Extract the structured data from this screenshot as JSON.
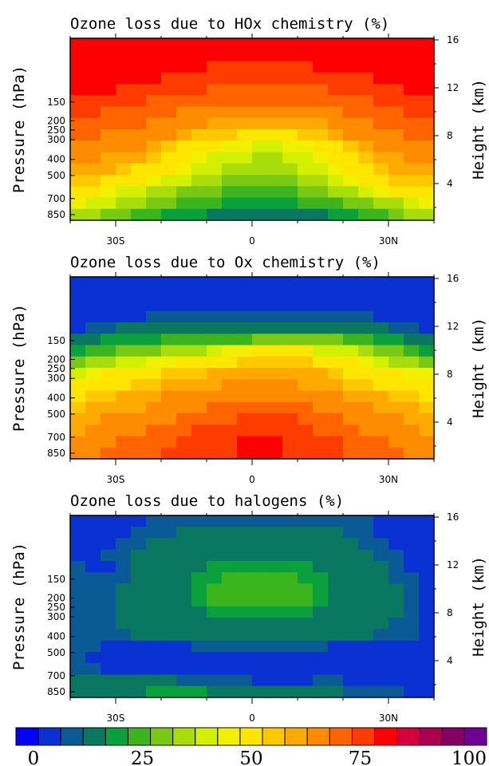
{
  "chart_data": [
    {
      "type": "heatmap",
      "title": "Ozone loss due to HOx chemistry (%)",
      "ylabel": "Pressure (hPa)",
      "ylabel_right": "Height (km)",
      "x_ticks": [
        "30S",
        "0",
        "30N"
      ],
      "y_ticks": [
        "150",
        "200",
        "250",
        "300",
        "400",
        "500",
        "700",
        "850"
      ],
      "y_right_ticks": [
        "16",
        "12",
        "8",
        "4"
      ],
      "x_range": [
        "40S",
        "40N"
      ],
      "height_range_km": [
        0,
        16
      ],
      "color_range": [
        0,
        100
      ],
      "rows_top_to_bottom": [
        [
          80,
          80,
          80,
          80,
          80,
          80,
          80,
          80,
          80,
          80,
          78,
          78,
          78,
          78,
          78,
          78,
          78,
          78,
          78,
          78,
          80,
          80,
          80,
          80
        ],
        [
          80,
          80,
          80,
          80,
          78,
          78,
          78,
          78,
          78,
          78,
          78,
          78,
          78,
          78,
          78,
          78,
          78,
          78,
          78,
          78,
          80,
          80,
          80,
          80
        ],
        [
          80,
          80,
          80,
          80,
          78,
          78,
          78,
          78,
          78,
          75,
          75,
          75,
          75,
          75,
          75,
          75,
          78,
          78,
          78,
          78,
          78,
          78,
          80,
          80
        ],
        [
          80,
          80,
          78,
          78,
          78,
          78,
          75,
          75,
          75,
          72,
          72,
          72,
          72,
          72,
          72,
          72,
          75,
          75,
          75,
          75,
          78,
          78,
          80,
          80
        ],
        [
          78,
          78,
          78,
          75,
          75,
          75,
          72,
          72,
          72,
          70,
          70,
          70,
          70,
          70,
          70,
          70,
          70,
          72,
          72,
          72,
          75,
          75,
          78,
          78
        ],
        [
          75,
          75,
          72,
          72,
          72,
          70,
          70,
          68,
          68,
          68,
          68,
          68,
          68,
          68,
          68,
          68,
          68,
          68,
          70,
          70,
          72,
          72,
          75,
          75
        ],
        [
          72,
          72,
          70,
          70,
          70,
          68,
          68,
          65,
          65,
          65,
          65,
          62,
          62,
          62,
          62,
          65,
          65,
          65,
          68,
          68,
          70,
          70,
          72,
          72
        ],
        [
          70,
          70,
          68,
          68,
          68,
          65,
          65,
          62,
          62,
          60,
          60,
          58,
          58,
          58,
          58,
          60,
          60,
          62,
          65,
          65,
          68,
          68,
          70,
          70
        ],
        [
          68,
          68,
          65,
          65,
          65,
          62,
          62,
          58,
          55,
          55,
          55,
          52,
          52,
          52,
          52,
          55,
          55,
          58,
          62,
          62,
          65,
          65,
          68,
          68
        ],
        [
          65,
          65,
          62,
          62,
          62,
          58,
          55,
          52,
          48,
          48,
          45,
          45,
          42,
          42,
          45,
          45,
          48,
          52,
          55,
          58,
          62,
          62,
          65,
          65
        ],
        [
          62,
          62,
          60,
          60,
          58,
          55,
          52,
          48,
          45,
          42,
          40,
          40,
          38,
          38,
          40,
          42,
          45,
          48,
          52,
          55,
          58,
          60,
          62,
          62
        ],
        [
          60,
          58,
          58,
          55,
          52,
          50,
          48,
          45,
          42,
          40,
          38,
          38,
          35,
          35,
          38,
          40,
          42,
          45,
          48,
          52,
          55,
          58,
          60,
          60
        ],
        [
          55,
          55,
          52,
          50,
          48,
          45,
          42,
          40,
          38,
          35,
          33,
          33,
          32,
          32,
          33,
          35,
          38,
          40,
          45,
          48,
          52,
          55,
          55,
          55
        ],
        [
          50,
          48,
          45,
          42,
          40,
          38,
          35,
          33,
          32,
          30,
          28,
          28,
          26,
          26,
          28,
          30,
          32,
          35,
          38,
          42,
          45,
          48,
          50,
          52
        ],
        [
          45,
          42,
          40,
          38,
          35,
          32,
          30,
          28,
          26,
          24,
          22,
          22,
          20,
          20,
          22,
          24,
          26,
          28,
          30,
          32,
          35,
          38,
          42,
          45
        ],
        [
          38,
          35,
          33,
          30,
          28,
          25,
          23,
          22,
          20,
          18,
          18,
          16,
          16,
          16,
          16,
          18,
          18,
          20,
          22,
          25,
          28,
          30,
          35,
          38
        ]
      ]
    },
    {
      "type": "heatmap",
      "title": "Ozone loss due to Ox chemistry (%)",
      "ylabel": "Pressure (hPa)",
      "ylabel_right": "Height (km)",
      "x_ticks": [
        "30S",
        "0",
        "30N"
      ],
      "y_ticks": [
        "150",
        "200",
        "250",
        "300",
        "400",
        "500",
        "700",
        "850"
      ],
      "y_right_ticks": [
        "16",
        "12",
        "8",
        "4"
      ],
      "x_range": [
        "40S",
        "40N"
      ],
      "height_range_km": [
        0,
        16
      ],
      "color_range": [
        0,
        100
      ],
      "rows_top_to_bottom": [
        [
          5,
          5,
          5,
          5,
          5,
          5,
          5,
          5,
          5,
          5,
          5,
          5,
          5,
          5,
          5,
          5,
          5,
          5,
          5,
          5,
          5,
          5,
          5,
          5
        ],
        [
          5,
          5,
          5,
          5,
          8,
          8,
          8,
          8,
          8,
          8,
          8,
          8,
          8,
          8,
          8,
          8,
          8,
          8,
          8,
          8,
          5,
          5,
          5,
          5
        ],
        [
          5,
          5,
          8,
          8,
          8,
          8,
          8,
          8,
          8,
          8,
          8,
          8,
          8,
          8,
          8,
          8,
          8,
          8,
          8,
          8,
          8,
          8,
          5,
          5
        ],
        [
          8,
          8,
          8,
          8,
          8,
          12,
          12,
          12,
          12,
          12,
          12,
          12,
          12,
          12,
          12,
          12,
          12,
          12,
          12,
          12,
          8,
          8,
          8,
          8
        ],
        [
          8,
          12,
          12,
          15,
          15,
          15,
          15,
          15,
          15,
          18,
          18,
          15,
          15,
          15,
          15,
          15,
          15,
          18,
          18,
          15,
          15,
          12,
          12,
          8
        ],
        [
          15,
          15,
          22,
          22,
          22,
          22,
          28,
          28,
          28,
          28,
          28,
          28,
          32,
          32,
          32,
          32,
          32,
          32,
          28,
          28,
          22,
          22,
          15,
          15
        ],
        [
          22,
          28,
          28,
          32,
          32,
          32,
          38,
          38,
          38,
          42,
          45,
          45,
          48,
          48,
          48,
          48,
          42,
          42,
          42,
          38,
          32,
          32,
          28,
          22
        ],
        [
          32,
          38,
          38,
          42,
          42,
          45,
          45,
          50,
          50,
          52,
          52,
          55,
          55,
          55,
          55,
          55,
          52,
          52,
          48,
          45,
          42,
          38,
          35,
          32
        ],
        [
          42,
          45,
          48,
          48,
          50,
          52,
          55,
          55,
          55,
          58,
          58,
          58,
          58,
          60,
          58,
          58,
          58,
          55,
          52,
          52,
          48,
          48,
          45,
          45
        ],
        [
          48,
          50,
          52,
          52,
          55,
          55,
          58,
          58,
          60,
          60,
          62,
          62,
          62,
          62,
          62,
          60,
          60,
          58,
          55,
          55,
          52,
          52,
          50,
          48
        ],
        [
          52,
          55,
          55,
          58,
          58,
          60,
          62,
          62,
          62,
          65,
          65,
          65,
          65,
          65,
          65,
          65,
          62,
          62,
          60,
          58,
          58,
          55,
          55,
          52
        ],
        [
          55,
          58,
          58,
          60,
          60,
          62,
          62,
          65,
          65,
          68,
          68,
          68,
          70,
          70,
          68,
          68,
          65,
          65,
          62,
          62,
          60,
          58,
          58,
          55
        ],
        [
          58,
          60,
          62,
          62,
          62,
          65,
          65,
          68,
          68,
          70,
          70,
          72,
          72,
          72,
          72,
          70,
          68,
          68,
          65,
          65,
          62,
          62,
          60,
          58
        ],
        [
          60,
          62,
          62,
          65,
          65,
          68,
          68,
          70,
          72,
          72,
          75,
          75,
          75,
          75,
          75,
          72,
          70,
          70,
          68,
          65,
          65,
          62,
          62,
          60
        ],
        [
          62,
          65,
          65,
          68,
          68,
          70,
          70,
          72,
          75,
          75,
          75,
          78,
          78,
          78,
          75,
          75,
          72,
          72,
          70,
          68,
          68,
          65,
          65,
          62
        ],
        [
          65,
          65,
          68,
          68,
          70,
          70,
          72,
          72,
          75,
          75,
          75,
          78,
          78,
          78,
          75,
          75,
          72,
          72,
          70,
          70,
          68,
          68,
          65,
          65
        ]
      ]
    },
    {
      "type": "heatmap",
      "title": "Ozone loss due to halogens (%)",
      "ylabel": "Pressure (hPa)",
      "ylabel_right": "Height (km)",
      "x_ticks": [
        "30S",
        "0",
        "30N"
      ],
      "y_ticks": [
        "150",
        "200",
        "250",
        "300",
        "400",
        "500",
        "700",
        "850"
      ],
      "y_right_ticks": [
        "16",
        "12",
        "8",
        "4"
      ],
      "x_range": [
        "40S",
        "40N"
      ],
      "height_range_km": [
        0,
        16
      ],
      "color_range": [
        0,
        100
      ],
      "rows_top_to_bottom": [
        [
          8,
          5,
          5,
          8,
          8,
          12,
          12,
          12,
          12,
          12,
          12,
          12,
          12,
          12,
          12,
          12,
          12,
          12,
          12,
          12,
          8,
          8,
          5,
          5
        ],
        [
          8,
          8,
          8,
          8,
          12,
          12,
          12,
          15,
          15,
          15,
          15,
          15,
          15,
          15,
          15,
          15,
          15,
          15,
          12,
          12,
          8,
          8,
          5,
          5
        ],
        [
          8,
          8,
          8,
          12,
          12,
          15,
          15,
          15,
          15,
          15,
          18,
          18,
          18,
          18,
          18,
          15,
          15,
          15,
          15,
          12,
          12,
          8,
          8,
          5
        ],
        [
          8,
          8,
          12,
          12,
          15,
          15,
          15,
          18,
          18,
          18,
          18,
          18,
          18,
          18,
          18,
          18,
          18,
          15,
          15,
          15,
          12,
          12,
          8,
          5
        ],
        [
          12,
          8,
          8,
          12,
          15,
          15,
          18,
          18,
          18,
          22,
          22,
          22,
          22,
          22,
          22,
          22,
          18,
          18,
          18,
          15,
          15,
          12,
          8,
          8
        ],
        [
          12,
          12,
          12,
          12,
          15,
          15,
          18,
          18,
          22,
          22,
          25,
          25,
          25,
          25,
          25,
          22,
          22,
          18,
          18,
          15,
          15,
          12,
          12,
          8
        ],
        [
          12,
          12,
          12,
          15,
          15,
          15,
          18,
          18,
          22,
          25,
          28,
          28,
          28,
          28,
          28,
          25,
          22,
          18,
          18,
          15,
          15,
          15,
          12,
          8
        ],
        [
          12,
          12,
          12,
          15,
          15,
          15,
          18,
          18,
          22,
          25,
          28,
          28,
          28,
          28,
          28,
          25,
          22,
          18,
          18,
          15,
          15,
          15,
          12,
          8
        ],
        [
          12,
          12,
          12,
          15,
          15,
          15,
          18,
          18,
          18,
          22,
          22,
          22,
          22,
          22,
          22,
          22,
          18,
          18,
          18,
          15,
          15,
          15,
          12,
          8
        ],
        [
          12,
          12,
          12,
          15,
          15,
          15,
          18,
          18,
          18,
          18,
          18,
          18,
          18,
          18,
          18,
          18,
          18,
          18,
          15,
          15,
          15,
          12,
          12,
          8
        ],
        [
          12,
          12,
          12,
          12,
          15,
          15,
          15,
          15,
          15,
          15,
          15,
          15,
          15,
          15,
          15,
          15,
          15,
          15,
          15,
          15,
          12,
          12,
          12,
          8
        ],
        [
          12,
          12,
          8,
          8,
          8,
          8,
          8,
          8,
          12,
          12,
          12,
          12,
          12,
          12,
          12,
          12,
          12,
          8,
          8,
          8,
          8,
          8,
          8,
          8
        ],
        [
          12,
          8,
          8,
          8,
          8,
          8,
          8,
          8,
          8,
          8,
          8,
          8,
          8,
          8,
          8,
          8,
          8,
          8,
          8,
          8,
          8,
          8,
          8,
          5
        ],
        [
          12,
          12,
          8,
          8,
          8,
          8,
          8,
          8,
          8,
          8,
          8,
          8,
          8,
          8,
          8,
          8,
          8,
          8,
          8,
          8,
          8,
          8,
          5,
          5
        ],
        [
          15,
          15,
          15,
          15,
          15,
          15,
          15,
          12,
          12,
          12,
          12,
          12,
          8,
          8,
          8,
          8,
          12,
          12,
          8,
          8,
          8,
          8,
          5,
          5
        ],
        [
          18,
          18,
          18,
          18,
          18,
          22,
          22,
          22,
          22,
          18,
          18,
          18,
          18,
          18,
          18,
          15,
          15,
          15,
          12,
          12,
          12,
          12,
          5,
          5
        ]
      ]
    }
  ],
  "colorbar": {
    "colors": [
      "#0000ff",
      "#0a32d2",
      "#0a5a96",
      "#0a7860",
      "#0aa03c",
      "#3cb41e",
      "#78c814",
      "#a8dc0a",
      "#d2f000",
      "#f0f000",
      "#ffe600",
      "#ffc800",
      "#ffaa00",
      "#ff8c00",
      "#ff6400",
      "#ff3c00",
      "#ff0000",
      "#d2003c",
      "#aa0050",
      "#820064",
      "#6e0096"
    ],
    "tick_labels": [
      "0",
      "25",
      "50",
      "75",
      "100"
    ],
    "range": [
      0,
      100
    ]
  }
}
